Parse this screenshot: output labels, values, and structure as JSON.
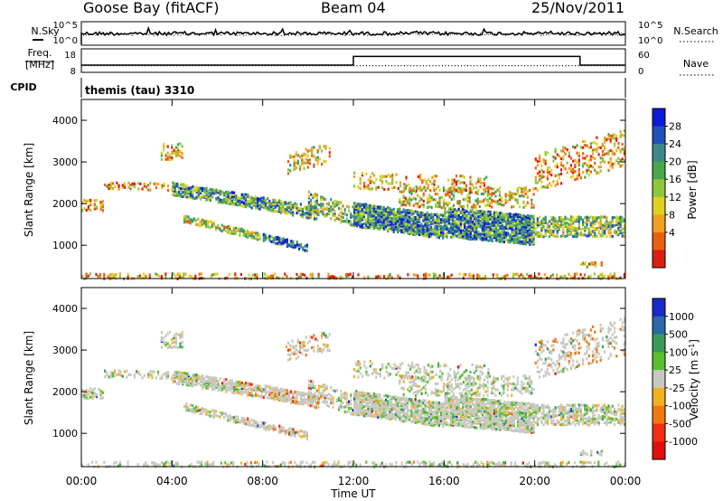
{
  "header": {
    "station": "Goose Bay (fitACF)",
    "beam": "Beam 04",
    "date": "25/Nov/2011"
  },
  "left_labels": {
    "nsky": "N.Sky",
    "freq_line1": "Freq.",
    "freq_line2": "[MHz]",
    "cpid": "CPID"
  },
  "right_labels": {
    "nsearch": "N.Search",
    "nave": "Nave"
  },
  "cpid_text": "themis (tau) 3310",
  "chart_data": [
    {
      "type": "line",
      "name": "noise",
      "y_left_ticks": [
        "10^5",
        "10^0"
      ],
      "y_right_ticks": [
        "10^5",
        "10^0"
      ],
      "series": [
        {
          "values_left": "N.Sky noise level around 10^3 throughout the day",
          "values_right": "N.Search (dotted), near N.Sky"
        }
      ]
    },
    {
      "type": "line",
      "name": "frequency-nave",
      "y_left_ticks": [
        "18",
        "8"
      ],
      "y_right_ticks": [
        "60",
        "0"
      ],
      "x": [
        "00:00",
        "12:00",
        "22:00",
        "24:00"
      ],
      "freq_mhz": [
        10.5,
        16.5,
        10.5,
        10.5
      ],
      "nave": [
        18,
        18,
        18,
        18
      ]
    },
    {
      "type": "heatmap",
      "name": "power",
      "ylabel": "Slant Range [km]",
      "y_ticks": [
        "4000",
        "3000",
        "2000",
        "1000"
      ],
      "ylim": [
        200,
        4500
      ],
      "xlim": [
        0,
        24
      ],
      "colorbar_label": "Power [dB]",
      "colorbar_ticks": [
        "28",
        "24",
        "20",
        "16",
        "12",
        "8",
        "4"
      ],
      "colors": [
        "#1018d8",
        "#2050b8",
        "#3c8a8a",
        "#4aa84a",
        "#8cc83c",
        "#e0d020",
        "#f0a020",
        "#e86010",
        "#d82010"
      ]
    },
    {
      "type": "heatmap",
      "name": "velocity",
      "ylabel": "Slant Range [km]",
      "y_ticks": [
        "4000",
        "3000",
        "2000",
        "1000"
      ],
      "ylim": [
        200,
        4500
      ],
      "xlim": [
        0,
        24
      ],
      "colorbar_label": "Velocity [m s^-1]",
      "colorbar_ticks": [
        "1000",
        "500",
        "100",
        "25",
        "-25",
        "-100",
        "-500",
        "-1000"
      ],
      "colors": [
        "#1a28c8",
        "#2a68a8",
        "#3a9a5a",
        "#58c030",
        "#c8c8c0",
        "#f0b020",
        "#f07810",
        "#f03010",
        "#e01010"
      ]
    }
  ],
  "x_axis": {
    "ticks": [
      "00:00",
      "04:00",
      "08:00",
      "12:00",
      "16:00",
      "20:00",
      "00:00"
    ],
    "label": "Time UT"
  }
}
